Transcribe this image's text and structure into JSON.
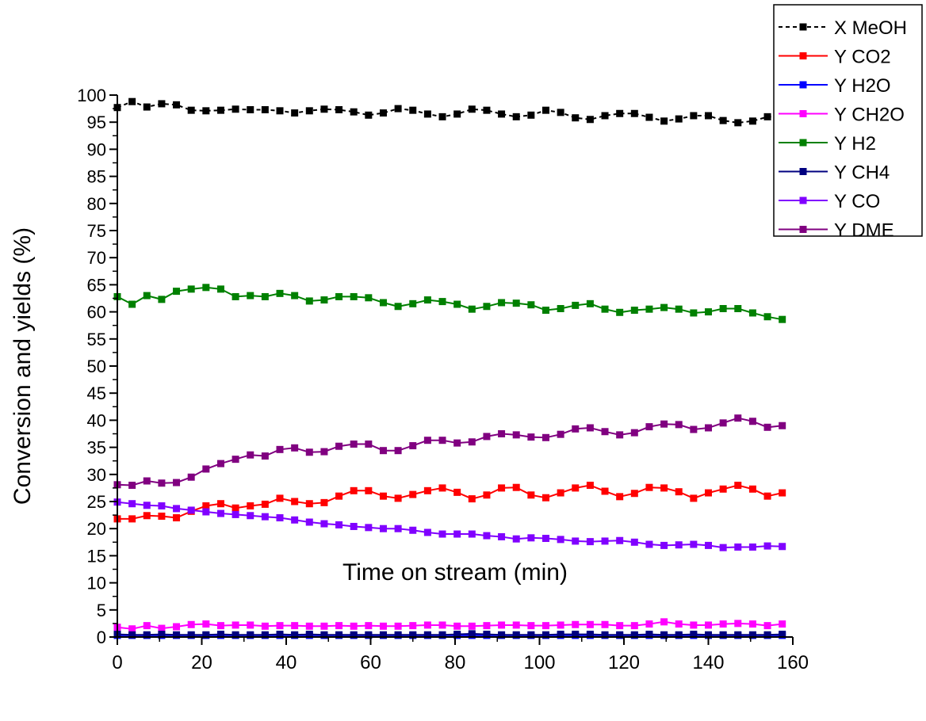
{
  "chart_data": {
    "type": "line",
    "xlabel": "Time on stream (min)",
    "ylabel": "Conversion and yields (%)",
    "xlim": [
      0,
      160
    ],
    "ylim": [
      0,
      100
    ],
    "x_ticks": [
      "0",
      "20",
      "40",
      "60",
      "80",
      "100",
      "120",
      "140",
      "160"
    ],
    "y_ticks": [
      "0",
      "5",
      "10",
      "15",
      "20",
      "25",
      "30",
      "35",
      "40",
      "45",
      "50",
      "55",
      "60",
      "65",
      "70",
      "75",
      "80",
      "85",
      "90",
      "95",
      "100"
    ],
    "grid": false,
    "legend_position": "top-right",
    "x": [
      0,
      3.5,
      7,
      10.5,
      14,
      17.5,
      21,
      24.5,
      28,
      31.5,
      35,
      38.5,
      42,
      45.5,
      49,
      52.5,
      56,
      59.5,
      63,
      66.5,
      70,
      73.5,
      77,
      80.5,
      84,
      87.5,
      91,
      94.5,
      98,
      101.5,
      105,
      108.5,
      112,
      115.5,
      119,
      122.5,
      126,
      129.5,
      133,
      136.5,
      140,
      143.5,
      147,
      150.5,
      154,
      157.5
    ],
    "series": [
      {
        "name": "X MeOH",
        "color": "#000000",
        "dashed": true,
        "values": [
          97.7,
          98.8,
          97.8,
          98.4,
          98.2,
          97.2,
          97.1,
          97.2,
          97.4,
          97.3,
          97.3,
          97.1,
          96.7,
          97.1,
          97.4,
          97.3,
          96.9,
          96.3,
          96.7,
          97.5,
          97.2,
          96.5,
          96.0,
          96.5,
          97.4,
          97.2,
          96.5,
          96.0,
          96.3,
          97.2,
          96.8,
          95.8,
          95.5,
          96.2,
          96.6,
          96.6,
          95.9,
          95.2,
          95.6,
          96.2,
          96.2,
          95.3,
          94.9,
          95.2,
          96.0,
          96.0
        ]
      },
      {
        "name": "Y CO2",
        "color": "#ff0000",
        "dashed": false,
        "values": [
          21.8,
          21.8,
          22.4,
          22.3,
          22.0,
          23.2,
          24.2,
          24.6,
          23.8,
          24.2,
          24.5,
          25.6,
          25.0,
          24.6,
          24.8,
          26.0,
          27.0,
          27.0,
          26.0,
          25.6,
          26.3,
          27.0,
          27.5,
          26.7,
          25.5,
          26.2,
          27.5,
          27.6,
          26.2,
          25.7,
          26.6,
          27.5,
          28.0,
          26.9,
          25.9,
          26.5,
          27.6,
          27.5,
          26.8,
          25.6,
          26.6,
          27.3,
          28.0,
          27.3,
          26.0,
          26.6
        ]
      },
      {
        "name": "Y H2O",
        "color": "#0000ff",
        "dashed": false,
        "values": [
          0.3,
          0.3,
          0.3,
          0.3,
          0.3,
          0.3,
          0.3,
          0.3,
          0.3,
          0.3,
          0.3,
          0.3,
          0.3,
          0.3,
          0.3,
          0.3,
          0.3,
          0.3,
          0.3,
          0.3,
          0.3,
          0.3,
          0.3,
          0.3,
          0.3,
          0.3,
          0.3,
          0.3,
          0.3,
          0.3,
          0.3,
          0.3,
          0.3,
          0.3,
          0.3,
          0.3,
          0.3,
          0.3,
          0.3,
          0.3,
          0.3,
          0.3,
          0.3,
          0.3,
          0.3,
          0.3
        ]
      },
      {
        "name": "Y CH2O",
        "color": "#ff00ff",
        "dashed": false,
        "values": [
          1.8,
          1.5,
          2.1,
          1.6,
          1.9,
          2.3,
          2.4,
          2.1,
          2.2,
          2.2,
          2.0,
          2.1,
          2.1,
          2.0,
          2.0,
          2.1,
          2.0,
          2.1,
          2.0,
          2.0,
          2.1,
          2.2,
          2.2,
          2.0,
          2.0,
          2.1,
          2.2,
          2.2,
          2.1,
          2.1,
          2.2,
          2.3,
          2.3,
          2.3,
          2.1,
          2.1,
          2.4,
          2.8,
          2.4,
          2.2,
          2.2,
          2.4,
          2.5,
          2.4,
          2.1,
          2.4
        ]
      },
      {
        "name": "Y H2",
        "color": "#008000",
        "dashed": false,
        "values": [
          62.8,
          61.4,
          63.0,
          62.3,
          63.8,
          64.2,
          64.5,
          64.2,
          62.8,
          63.0,
          62.8,
          63.4,
          63.0,
          62.0,
          62.2,
          62.8,
          62.8,
          62.6,
          61.7,
          61.0,
          61.5,
          62.2,
          61.9,
          61.4,
          60.5,
          61.0,
          61.7,
          61.6,
          61.3,
          60.3,
          60.6,
          61.2,
          61.5,
          60.5,
          59.9,
          60.3,
          60.5,
          60.8,
          60.5,
          59.8,
          60.0,
          60.6,
          60.6,
          59.8,
          59.1,
          58.6
        ]
      },
      {
        "name": "Y CH4",
        "color": "#000080",
        "dashed": false,
        "values": [
          0.5,
          0.4,
          0.4,
          0.5,
          0.4,
          0.4,
          0.4,
          0.5,
          0.4,
          0.4,
          0.4,
          0.5,
          0.4,
          0.5,
          0.4,
          0.4,
          0.4,
          0.4,
          0.4,
          0.4,
          0.4,
          0.4,
          0.4,
          0.5,
          0.6,
          0.5,
          0.4,
          0.4,
          0.4,
          0.4,
          0.5,
          0.5,
          0.5,
          0.4,
          0.4,
          0.4,
          0.5,
          0.4,
          0.4,
          0.5,
          0.4,
          0.4,
          0.4,
          0.4,
          0.4,
          0.5
        ]
      },
      {
        "name": "Y CO",
        "color": "#8000ff",
        "dashed": false,
        "values": [
          24.9,
          24.6,
          24.3,
          24.2,
          23.7,
          23.4,
          23.1,
          22.8,
          22.6,
          22.4,
          22.2,
          22.0,
          21.6,
          21.2,
          20.9,
          20.7,
          20.4,
          20.2,
          20.0,
          20.0,
          19.7,
          19.3,
          19.0,
          19.0,
          19.0,
          18.7,
          18.5,
          18.1,
          18.3,
          18.2,
          18.0,
          17.7,
          17.6,
          17.7,
          17.8,
          17.5,
          17.1,
          16.9,
          17.0,
          17.1,
          16.9,
          16.5,
          16.6,
          16.6,
          16.8,
          16.7
        ]
      },
      {
        "name": "Y DME",
        "color": "#800080",
        "dashed": false,
        "values": [
          28.1,
          28.0,
          28.8,
          28.4,
          28.5,
          29.5,
          31.0,
          32.0,
          32.8,
          33.6,
          33.4,
          34.6,
          34.9,
          34.1,
          34.2,
          35.2,
          35.6,
          35.6,
          34.4,
          34.4,
          35.3,
          36.3,
          36.3,
          35.8,
          36.0,
          37.0,
          37.5,
          37.3,
          36.9,
          36.8,
          37.4,
          38.4,
          38.6,
          37.9,
          37.3,
          37.7,
          38.8,
          39.3,
          39.2,
          38.3,
          38.6,
          39.5,
          40.4,
          39.8,
          38.7,
          39.0
        ]
      }
    ]
  }
}
